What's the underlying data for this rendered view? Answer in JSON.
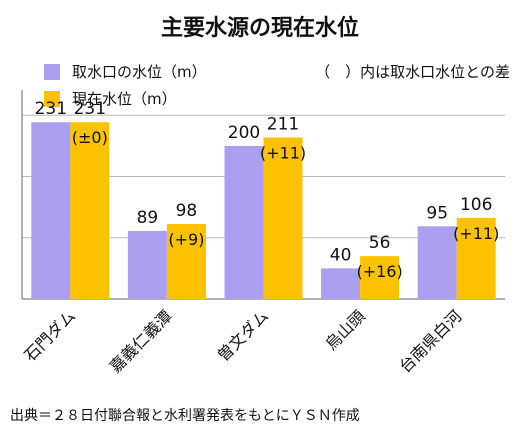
{
  "chart_data": {
    "type": "bar",
    "title": "主要水源の現在水位",
    "categories": [
      "石門ダム",
      "嘉義仁義潭",
      "曽文ダム",
      "烏山頭",
      "台南県白河"
    ],
    "series": [
      {
        "name": "取水口の水位（m）",
        "values": [
          231,
          89,
          200,
          40,
          95
        ],
        "color": "#ad9ff0"
      },
      {
        "name": "現在水位（m）",
        "values": [
          231,
          98,
          211,
          56,
          106
        ],
        "color": "#fcc200"
      }
    ],
    "diff_labels": [
      "(±0)",
      "(+9)",
      "(+11)",
      "(+16)",
      "(+11)"
    ],
    "note": "（　）内は取水口水位との差",
    "ylim": [
      0,
      260
    ],
    "grid": true,
    "legend": "top-left",
    "xlabel": "",
    "ylabel": ""
  },
  "source": "出典＝２８日付聯合報と水利署発表をもとにＹＳＮ作成"
}
